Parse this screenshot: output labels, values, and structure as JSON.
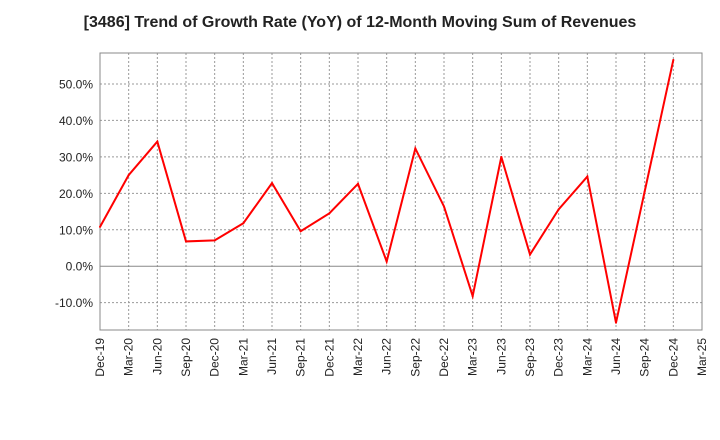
{
  "chart_data": {
    "type": "line",
    "title": "[3486]  Trend of Growth Rate (YoY) of 12-Month Moving Sum of Revenues",
    "xlabel": "",
    "ylabel": "",
    "categories": [
      "Dec-19",
      "Mar-20",
      "Jun-20",
      "Sep-20",
      "Dec-20",
      "Mar-21",
      "Jun-21",
      "Sep-21",
      "Dec-21",
      "Mar-22",
      "Jun-22",
      "Sep-22",
      "Dec-22",
      "Mar-23",
      "Jun-23",
      "Sep-23",
      "Dec-23",
      "Mar-24",
      "Jun-24",
      "Sep-24",
      "Dec-24",
      "Mar-25"
    ],
    "y_ticks": [
      -10,
      0,
      10,
      20,
      30,
      40,
      50
    ],
    "y_tick_labels": [
      "-10.0%",
      "0.0%",
      "10.0%",
      "20.0%",
      "30.0%",
      "40.0%",
      "50.0%"
    ],
    "ylim": [
      -17.5,
      58.5
    ],
    "grid": true,
    "series": [
      {
        "color": "#ff0000",
        "points": [
          {
            "x": "Dec-19",
            "y": 10.8
          },
          {
            "x": "Mar-20",
            "y": 25.0
          },
          {
            "x": "Jun-20",
            "y": 34.2
          },
          {
            "x": "Sep-20",
            "y": 6.8
          },
          {
            "x": "Dec-20",
            "y": 7.1
          },
          {
            "x": "Mar-21",
            "y": 11.8
          },
          {
            "x": "Jun-21",
            "y": 22.8
          },
          {
            "x": "Sep-21",
            "y": 9.6
          },
          {
            "x": "Dec-21",
            "y": 14.5
          },
          {
            "x": "Mar-22",
            "y": 22.6
          },
          {
            "x": "Jun-22",
            "y": 1.3
          },
          {
            "x": "Sep-22",
            "y": 32.3
          },
          {
            "x": "Dec-22",
            "y": 16.4
          },
          {
            "x": "Mar-23",
            "y": -8.2
          },
          {
            "x": "Jun-23",
            "y": 30.0
          },
          {
            "x": "Sep-23",
            "y": 3.2
          },
          {
            "x": "Dec-23",
            "y": 15.6
          },
          {
            "x": "Mar-24",
            "y": 24.6
          },
          {
            "x": "Jun-24",
            "y": -15.5
          },
          {
            "x": "Sep-24",
            "y": 20.5
          },
          {
            "x": "Dec-24",
            "y": 56.6
          }
        ]
      }
    ]
  }
}
